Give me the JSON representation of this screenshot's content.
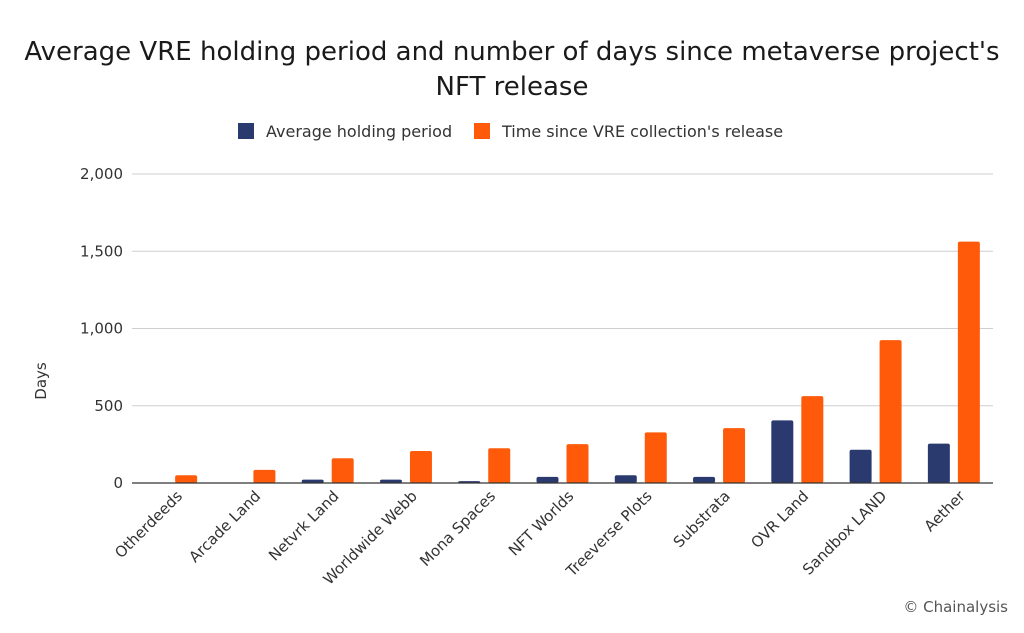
{
  "chart_data": {
    "type": "bar",
    "title_lines": [
      "Average VRE holding period and number of days since metaverse project's",
      "NFT release"
    ],
    "ylabel": "Days",
    "xlabel": "",
    "ylim": [
      0,
      2000
    ],
    "yticks": [
      0,
      500,
      1000,
      1500,
      2000
    ],
    "ytick_labels": [
      "0",
      "500",
      "1,000",
      "1,500",
      "2,000"
    ],
    "grid": true,
    "legend_position": "top-center",
    "categories": [
      "Otherdeeds",
      "Arcade Land",
      "Netvrk Land",
      "Worldwide Webb",
      "Mona Spaces",
      "NFT Worlds",
      "Treeverse Plots",
      "Substrata",
      "OVR Land",
      "Sandbox LAND",
      "Aether"
    ],
    "series": [
      {
        "name": "Average holding period",
        "color": "#2b3a6e",
        "values": [
          0,
          0,
          22,
          22,
          12,
          40,
          50,
          40,
          405,
          215,
          255
        ]
      },
      {
        "name": "Time since VRE collection's release",
        "color": "#fe5a0a",
        "values": [
          50,
          85,
          160,
          207,
          225,
          252,
          328,
          355,
          562,
          925,
          1562
        ]
      }
    ]
  },
  "credit": "© Chainalysis"
}
